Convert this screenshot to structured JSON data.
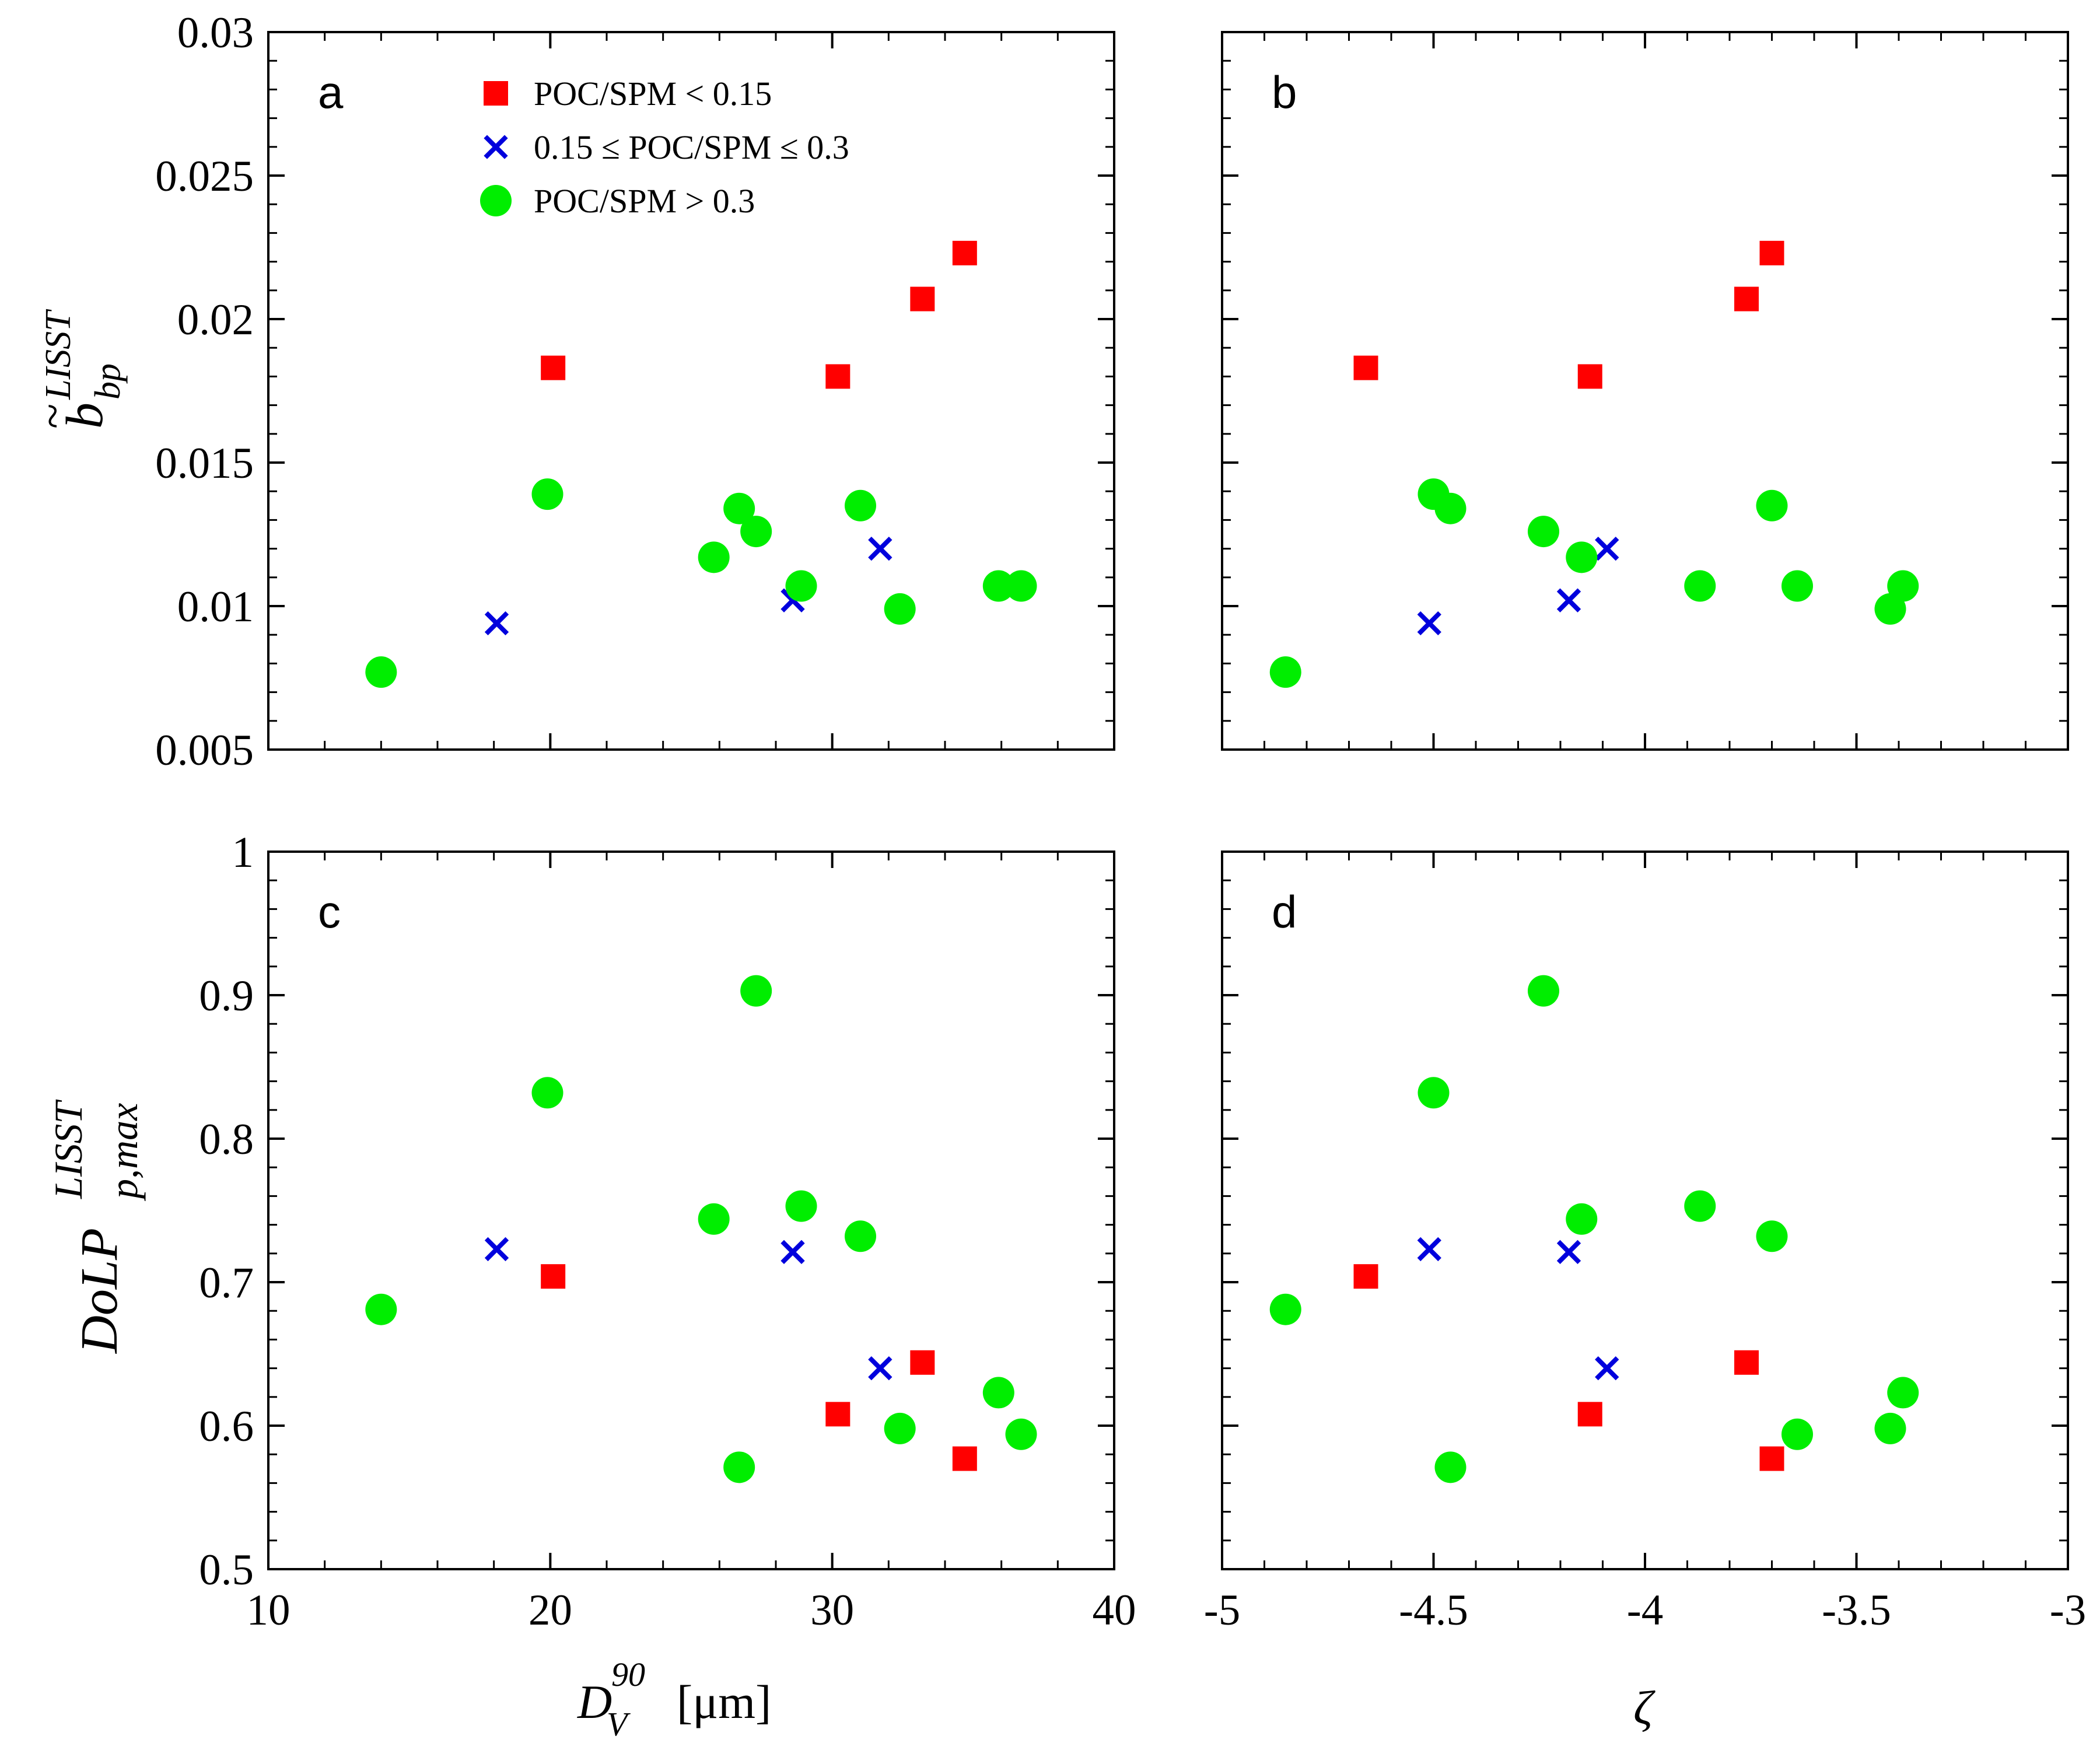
{
  "colors": {
    "low": "#ff0000",
    "mid": "#0000dd",
    "high": "#00ee00",
    "axis": "#000000"
  },
  "legend": [
    {
      "key": "low",
      "label": "POC/SPM < 0.15",
      "marker": "square"
    },
    {
      "key": "mid",
      "label": "0.15 ≤ POC/SPM ≤ 0.3",
      "marker": "cross"
    },
    {
      "key": "high",
      "label": "POC/SPM > 0.3",
      "marker": "circle"
    }
  ],
  "axis_labels": {
    "x_left_base": "D",
    "x_left_sup": "90",
    "x_left_sub": "V",
    "x_left_unit": "[μm]",
    "x_right": "ζ",
    "y_top_base": "b",
    "y_top_tilde": "~",
    "y_top_sub": "bp",
    "y_top_sup": "LISST",
    "y_bottom_base": "DoLP",
    "y_bottom_sup": "LISST",
    "y_bottom_sub": "p,max"
  },
  "chart_data": [
    {
      "panel": "a",
      "type": "scatter",
      "xlim": [
        10,
        40
      ],
      "ylim": [
        0.005,
        0.03
      ],
      "xticks": [
        "10",
        "20",
        "30",
        "40"
      ],
      "yticks": [
        "0.005",
        "0.01",
        "0.015",
        "0.02",
        "0.025",
        "0.03"
      ],
      "show_xticklabels": false,
      "show_yticklabels": true,
      "show_legend": true,
      "series": [
        {
          "name": "POC/SPM < 0.15",
          "key": "low",
          "x": [
            20.1,
            30.2,
            33.2,
            34.7
          ],
          "y": [
            0.0183,
            0.018,
            0.0207,
            0.0223
          ]
        },
        {
          "name": "0.15 ≤ POC/SPM ≤ 0.3",
          "key": "mid",
          "x": [
            18.1,
            28.6,
            31.7
          ],
          "y": [
            0.0094,
            0.0102,
            0.012
          ]
        },
        {
          "name": "POC/SPM > 0.3",
          "key": "high",
          "x": [
            14.0,
            19.9,
            25.8,
            26.7,
            27.3,
            28.9,
            31.0,
            32.4,
            35.9,
            36.7
          ],
          "y": [
            0.0077,
            0.0139,
            0.0117,
            0.0134,
            0.0126,
            0.0107,
            0.0135,
            0.0099,
            0.0107,
            0.0107
          ]
        }
      ]
    },
    {
      "panel": "b",
      "type": "scatter",
      "xlim": [
        -5,
        -3
      ],
      "ylim": [
        0.005,
        0.03
      ],
      "xticks": [
        "-5",
        "-4.5",
        "-4",
        "-3.5",
        "-3"
      ],
      "yticks": [
        "0.005",
        "0.01",
        "0.015",
        "0.02",
        "0.025",
        "0.03"
      ],
      "show_xticklabels": false,
      "show_yticklabels": false,
      "show_legend": false,
      "series": [
        {
          "name": "POC/SPM < 0.15",
          "key": "low",
          "x": [
            -4.66,
            -4.13,
            -3.76,
            -3.7
          ],
          "y": [
            0.0183,
            0.018,
            0.0207,
            0.0223
          ]
        },
        {
          "name": "0.15 ≤ POC/SPM ≤ 0.3",
          "key": "mid",
          "x": [
            -4.51,
            -4.18,
            -4.09
          ],
          "y": [
            0.0094,
            0.0102,
            0.012
          ]
        },
        {
          "name": "POC/SPM > 0.3",
          "key": "high",
          "x": [
            -4.85,
            -4.5,
            -4.46,
            -4.24,
            -4.15,
            -3.87,
            -3.7,
            -3.64,
            -3.42,
            -3.39
          ],
          "y": [
            0.0077,
            0.0139,
            0.0134,
            0.0126,
            0.0117,
            0.0107,
            0.0135,
            0.0107,
            0.0099,
            0.0107
          ]
        }
      ]
    },
    {
      "panel": "c",
      "type": "scatter",
      "xlim": [
        10,
        40
      ],
      "ylim": [
        0.5,
        1
      ],
      "xticks": [
        "10",
        "20",
        "30",
        "40"
      ],
      "yticks": [
        "0.5",
        "0.6",
        "0.7",
        "0.8",
        "0.9",
        "1"
      ],
      "show_xticklabels": true,
      "show_yticklabels": true,
      "show_legend": false,
      "series": [
        {
          "name": "POC/SPM < 0.15",
          "key": "low",
          "x": [
            20.1,
            30.2,
            33.2,
            34.7
          ],
          "y": [
            0.704,
            0.608,
            0.644,
            0.577
          ]
        },
        {
          "name": "0.15 ≤ POC/SPM ≤ 0.3",
          "key": "mid",
          "x": [
            18.1,
            28.6,
            31.7
          ],
          "y": [
            0.723,
            0.721,
            0.64
          ]
        },
        {
          "name": "POC/SPM > 0.3",
          "key": "high",
          "x": [
            14.0,
            19.9,
            25.8,
            26.7,
            27.3,
            28.9,
            31.0,
            32.4,
            35.9,
            36.7
          ],
          "y": [
            0.681,
            0.832,
            0.744,
            0.571,
            0.903,
            0.753,
            0.732,
            0.598,
            0.623,
            0.594
          ]
        }
      ]
    },
    {
      "panel": "d",
      "type": "scatter",
      "xlim": [
        -5,
        -3
      ],
      "ylim": [
        0.5,
        1
      ],
      "xticks": [
        "-5",
        "-4.5",
        "-4",
        "-3.5",
        "-3"
      ],
      "yticks": [
        "0.5",
        "0.6",
        "0.7",
        "0.8",
        "0.9",
        "1"
      ],
      "show_xticklabels": true,
      "show_yticklabels": false,
      "show_legend": false,
      "series": [
        {
          "name": "POC/SPM < 0.15",
          "key": "low",
          "x": [
            -4.66,
            -4.13,
            -3.76,
            -3.7
          ],
          "y": [
            0.704,
            0.608,
            0.644,
            0.577
          ]
        },
        {
          "name": "0.15 ≤ POC/SPM ≤ 0.3",
          "key": "mid",
          "x": [
            -4.51,
            -4.18,
            -4.09
          ],
          "y": [
            0.723,
            0.721,
            0.64
          ]
        },
        {
          "name": "POC/SPM > 0.3",
          "key": "high",
          "x": [
            -4.85,
            -4.5,
            -4.46,
            -4.24,
            -4.15,
            -3.87,
            -3.7,
            -3.64,
            -3.42,
            -3.39
          ],
          "y": [
            0.681,
            0.832,
            0.571,
            0.903,
            0.744,
            0.753,
            0.732,
            0.594,
            0.598,
            0.623
          ]
        }
      ]
    }
  ]
}
